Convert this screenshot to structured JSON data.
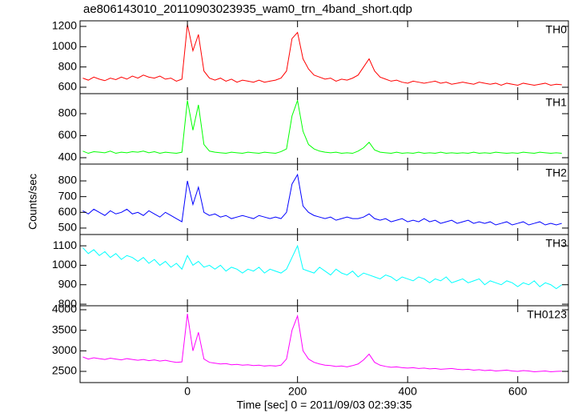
{
  "chart_data": {
    "type": "line",
    "title": "ae806143010_20110903023935_wam0_trn_4band_short.qdp",
    "x_label": "Time [sec] 0 = 2011/09/03 02:39:35",
    "y_label": "Counts/sec",
    "xlim": [
      -195,
      692
    ],
    "xticks": [
      0,
      200,
      400,
      600
    ],
    "x": [
      -190,
      -180,
      -170,
      -160,
      -150,
      -140,
      -130,
      -120,
      -110,
      -100,
      -90,
      -80,
      -70,
      -60,
      -50,
      -40,
      -30,
      -20,
      -10,
      0,
      10,
      20,
      30,
      40,
      50,
      60,
      70,
      80,
      90,
      100,
      110,
      120,
      130,
      140,
      150,
      160,
      170,
      180,
      190,
      200,
      210,
      220,
      230,
      240,
      250,
      260,
      270,
      280,
      290,
      300,
      310,
      320,
      330,
      340,
      350,
      360,
      370,
      380,
      390,
      400,
      410,
      420,
      430,
      440,
      450,
      460,
      470,
      480,
      490,
      500,
      510,
      520,
      530,
      540,
      550,
      560,
      570,
      580,
      590,
      600,
      610,
      620,
      630,
      640,
      650,
      660,
      670,
      680
    ],
    "series": [
      {
        "name": "TH0",
        "color": "#ff0000",
        "ylim": [
          537,
          1255
        ],
        "yticks": [
          600,
          800,
          1000,
          1200
        ],
        "values": [
          690,
          670,
          700,
          680,
          665,
          690,
          675,
          700,
          680,
          710,
          690,
          720,
          700,
          690,
          710,
          680,
          690,
          660,
          680,
          1220,
          960,
          1120,
          760,
          690,
          670,
          690,
          660,
          680,
          650,
          670,
          660,
          650,
          670,
          650,
          660,
          670,
          690,
          760,
          1080,
          1140,
          880,
          780,
          720,
          700,
          680,
          690,
          660,
          680,
          670,
          690,
          720,
          800,
          880,
          760,
          700,
          680,
          660,
          670,
          650,
          640,
          660,
          650,
          640,
          650,
          660,
          640,
          650,
          630,
          640,
          650,
          640,
          630,
          650,
          640,
          630,
          640,
          620,
          640,
          630,
          620,
          640,
          630,
          620,
          630,
          640,
          620,
          630,
          625
        ]
      },
      {
        "name": "TH1",
        "color": "#00ff00",
        "ylim": [
          342,
          982
        ],
        "yticks": [
          400,
          600,
          800
        ],
        "values": [
          460,
          440,
          455,
          450,
          445,
          460,
          440,
          450,
          445,
          455,
          450,
          460,
          445,
          455,
          440,
          450,
          445,
          440,
          450,
          920,
          650,
          880,
          520,
          460,
          450,
          445,
          440,
          450,
          445,
          440,
          450,
          445,
          440,
          450,
          445,
          440,
          455,
          480,
          780,
          920,
          640,
          520,
          480,
          460,
          450,
          445,
          450,
          440,
          445,
          440,
          460,
          490,
          540,
          470,
          450,
          445,
          440,
          450,
          440,
          445,
          440,
          450,
          440,
          445,
          440,
          450,
          440,
          445,
          440,
          445,
          440,
          450,
          440,
          445,
          440,
          450,
          445,
          440,
          445,
          440,
          450,
          445,
          440,
          450,
          445,
          440,
          445,
          440
        ]
      },
      {
        "name": "TH2",
        "color": "#0000ff",
        "ylim": [
          459,
          907
        ],
        "yticks": [
          500,
          600,
          700,
          800
        ],
        "values": [
          610,
          590,
          620,
          600,
          580,
          610,
          590,
          600,
          620,
          590,
          600,
          580,
          610,
          590,
          570,
          600,
          580,
          560,
          540,
          800,
          650,
          760,
          600,
          580,
          590,
          570,
          580,
          560,
          570,
          580,
          570,
          560,
          580,
          570,
          560,
          570,
          560,
          600,
          780,
          840,
          640,
          600,
          580,
          570,
          560,
          570,
          550,
          560,
          570,
          560,
          560,
          570,
          590,
          560,
          550,
          560,
          540,
          550,
          560,
          540,
          550,
          540,
          560,
          540,
          550,
          530,
          540,
          550,
          530,
          540,
          550,
          530,
          540,
          530,
          540,
          520,
          530,
          540,
          520,
          530,
          540,
          520,
          530,
          540,
          520,
          530,
          520,
          530
        ]
      },
      {
        "name": "TH3",
        "color": "#00ffff",
        "ylim": [
          792,
          1158
        ],
        "yticks": [
          800,
          900,
          1000,
          1100
        ],
        "values": [
          1090,
          1060,
          1080,
          1050,
          1070,
          1040,
          1060,
          1030,
          1050,
          1040,
          1020,
          1040,
          1010,
          1030,
          1000,
          1020,
          990,
          1010,
          980,
          1050,
          1000,
          1020,
          990,
          1000,
          980,
          1000,
          970,
          990,
          980,
          960,
          980,
          970,
          990,
          960,
          980,
          970,
          960,
          980,
          1040,
          1100,
          980,
          970,
          960,
          990,
          970,
          950,
          980,
          960,
          950,
          970,
          940,
          960,
          950,
          940,
          930,
          950,
          940,
          920,
          940,
          930,
          920,
          940,
          930,
          910,
          930,
          920,
          940,
          910,
          920,
          930,
          910,
          920,
          930,
          900,
          920,
          910,
          900,
          920,
          910,
          890,
          910,
          900,
          920,
          890,
          910,
          900,
          880,
          900
        ]
      },
      {
        "name": "TH0123",
        "color": "#ff00ff",
        "ylim": [
          2227,
          4097
        ],
        "yticks": [
          2500,
          3000,
          3500,
          4000
        ],
        "values": [
          2850,
          2800,
          2830,
          2810,
          2790,
          2820,
          2800,
          2780,
          2810,
          2790,
          2770,
          2790,
          2760,
          2780,
          2750,
          2770,
          2740,
          2720,
          2730,
          3900,
          3000,
          3450,
          2800,
          2720,
          2700,
          2680,
          2690,
          2660,
          2670,
          2650,
          2660,
          2640,
          2650,
          2630,
          2640,
          2630,
          2650,
          2800,
          3500,
          3850,
          3000,
          2800,
          2720,
          2680,
          2650,
          2640,
          2620,
          2630,
          2610,
          2640,
          2680,
          2780,
          2920,
          2720,
          2650,
          2620,
          2600,
          2610,
          2590,
          2580,
          2590,
          2570,
          2580,
          2560,
          2570,
          2550,
          2560,
          2570,
          2550,
          2540,
          2550,
          2530,
          2540,
          2520,
          2530,
          2510,
          2520,
          2530,
          2510,
          2500,
          2520,
          2510,
          2490,
          2500,
          2510,
          2490,
          2500,
          2505
        ]
      }
    ]
  }
}
